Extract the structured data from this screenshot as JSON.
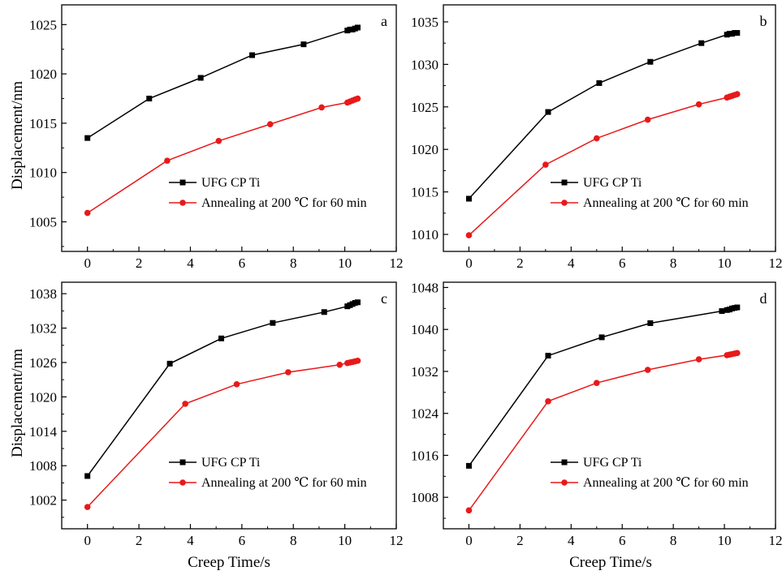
{
  "figure": {
    "xlabel_bottom": "Creep Time/s",
    "ylabel_left": "Displacement/nm"
  },
  "colors": {
    "series_ufg": "#000000",
    "series_anneal": "#e8191a",
    "axis": "#000000",
    "background": "#ffffff"
  },
  "chart_data": [
    {
      "type": "line",
      "panel_label": "a",
      "xlim": [
        -1,
        12
      ],
      "ylim": [
        1002,
        1027
      ],
      "xticks": [
        0,
        2,
        4,
        6,
        8,
        10,
        12
      ],
      "yticks": [
        1005,
        1010,
        1015,
        1020,
        1025
      ],
      "legend_position": "center-right",
      "series": [
        {
          "name": "UFG CP Ti",
          "marker": "square",
          "x": [
            0,
            2.4,
            4.4,
            6.4,
            8.4,
            10.1,
            10.2,
            10.3,
            10.4,
            10.5
          ],
          "y": [
            1013.5,
            1017.5,
            1019.6,
            1021.9,
            1023.0,
            1024.4,
            1024.5,
            1024.5,
            1024.6,
            1024.7
          ]
        },
        {
          "name": "Annealing at 200 ℃ for 60 min",
          "marker": "circle",
          "x": [
            0,
            3.1,
            5.1,
            7.1,
            9.1,
            10.1,
            10.2,
            10.3,
            10.4,
            10.5
          ],
          "y": [
            1005.9,
            1011.2,
            1013.2,
            1014.9,
            1016.6,
            1017.1,
            1017.2,
            1017.3,
            1017.4,
            1017.5
          ]
        }
      ]
    },
    {
      "type": "line",
      "panel_label": "b",
      "xlim": [
        -1,
        12
      ],
      "ylim": [
        1008,
        1037
      ],
      "xticks": [
        0,
        2,
        4,
        6,
        8,
        10,
        12
      ],
      "yticks": [
        1010,
        1015,
        1020,
        1025,
        1030,
        1035
      ],
      "legend_position": "center-right",
      "series": [
        {
          "name": "UFG CP Ti",
          "marker": "square",
          "x": [
            0,
            3.1,
            5.1,
            7.1,
            9.1,
            10.1,
            10.2,
            10.3,
            10.4,
            10.5
          ],
          "y": [
            1014.2,
            1024.4,
            1027.8,
            1030.3,
            1032.5,
            1033.5,
            1033.6,
            1033.6,
            1033.7,
            1033.7
          ]
        },
        {
          "name": "Annealing at 200 ℃ for 60 min",
          "marker": "circle",
          "x": [
            0,
            3.0,
            5.0,
            7.0,
            9.0,
            10.1,
            10.2,
            10.3,
            10.4,
            10.5
          ],
          "y": [
            1009.9,
            1018.2,
            1021.3,
            1023.5,
            1025.3,
            1026.1,
            1026.2,
            1026.3,
            1026.4,
            1026.5
          ]
        }
      ]
    },
    {
      "type": "line",
      "panel_label": "c",
      "xlim": [
        -1,
        12
      ],
      "ylim": [
        997,
        1040
      ],
      "xticks": [
        0,
        2,
        4,
        6,
        8,
        10,
        12
      ],
      "yticks": [
        1002,
        1008,
        1014,
        1020,
        1026,
        1032,
        1038
      ],
      "legend_position": "bottom-right",
      "series": [
        {
          "name": "UFG CP Ti",
          "marker": "square",
          "x": [
            0,
            3.2,
            5.2,
            7.2,
            9.2,
            10.1,
            10.2,
            10.3,
            10.4,
            10.5
          ],
          "y": [
            1006.2,
            1025.8,
            1030.2,
            1032.9,
            1034.8,
            1035.8,
            1036.0,
            1036.2,
            1036.4,
            1036.5
          ]
        },
        {
          "name": "Annealing at 200 ℃ for 60 min",
          "marker": "circle",
          "x": [
            0,
            3.8,
            5.8,
            7.8,
            9.8,
            10.1,
            10.2,
            10.3,
            10.4,
            10.5
          ],
          "y": [
            1000.8,
            1018.8,
            1022.2,
            1024.3,
            1025.6,
            1025.9,
            1026.0,
            1026.1,
            1026.2,
            1026.3
          ]
        }
      ]
    },
    {
      "type": "line",
      "panel_label": "d",
      "xlim": [
        -1,
        12
      ],
      "ylim": [
        1002,
        1049
      ],
      "xticks": [
        0,
        2,
        4,
        6,
        8,
        10,
        12
      ],
      "yticks": [
        1008,
        1016,
        1024,
        1032,
        1040,
        1048
      ],
      "legend_position": "bottom-right",
      "series": [
        {
          "name": "UFG CP Ti",
          "marker": "square",
          "x": [
            0,
            3.1,
            5.2,
            7.1,
            9.9,
            10.1,
            10.2,
            10.3,
            10.4,
            10.5
          ],
          "y": [
            1014.0,
            1035.0,
            1038.5,
            1041.2,
            1043.5,
            1043.7,
            1043.8,
            1044.0,
            1044.1,
            1044.2
          ]
        },
        {
          "name": "Annealing at 200 ℃ for 60 min",
          "marker": "circle",
          "x": [
            0,
            3.1,
            5.0,
            7.0,
            9.0,
            10.1,
            10.2,
            10.3,
            10.4,
            10.5
          ],
          "y": [
            1005.5,
            1026.3,
            1029.8,
            1032.3,
            1034.3,
            1035.1,
            1035.2,
            1035.3,
            1035.4,
            1035.5
          ]
        }
      ]
    }
  ]
}
